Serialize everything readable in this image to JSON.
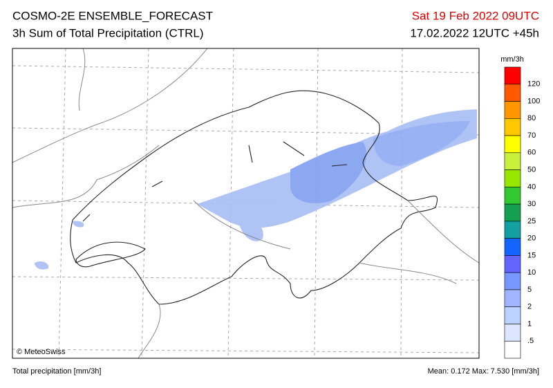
{
  "header": {
    "title": "COSMO-2E ENSEMBLE_FORECAST",
    "subtitle": "3h Sum of Total Precipitation (CTRL)",
    "valid_time": "Sat 19 Feb 2022 09UTC",
    "run": "17.02.2022 12UTC +45h"
  },
  "colorbar": {
    "unit": "mm/3h",
    "levels": [
      120,
      100,
      80,
      70,
      60,
      50,
      40,
      30,
      25,
      20,
      15,
      10,
      5,
      2,
      1,
      {
        "value": 0.5,
        "label": ".5"
      }
    ],
    "colors": [
      "#ff0000",
      "#ff5a00",
      "#ff9600",
      "#ffc800",
      "#ffff00",
      "#c8f03c",
      "#96e600",
      "#32c832",
      "#14a050",
      "#14a0a0",
      "#1464ff",
      "#6464ff",
      "#7896ff",
      "#a0b4ff",
      "#bed2ff",
      "#dce6ff",
      "#ffffff"
    ]
  },
  "map": {
    "credit": "© MeteoSwiss"
  },
  "footer": {
    "left": "Total precipitation [mm/3h]",
    "right": "Mean:  0.172 Max:  7.530 [mm/3h]"
  }
}
